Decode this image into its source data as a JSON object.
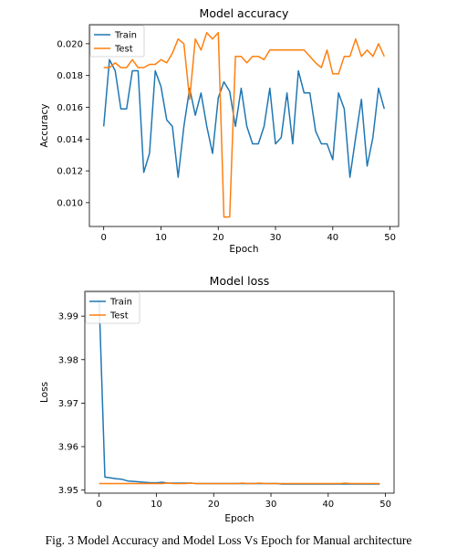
{
  "colors": {
    "train": "#1f77b4",
    "test": "#ff7f0e"
  },
  "caption": "Fig. 3  Model Accuracy and Model Loss Vs Epoch for Manual architecture",
  "chart_data": [
    {
      "type": "line",
      "title": "Model accuracy",
      "xlabel": "Epoch",
      "ylabel": "Accuracy",
      "xlim": [
        -2.5,
        51.5
      ],
      "ylim": [
        0.0085,
        0.0212
      ],
      "xticks": [
        0,
        10,
        20,
        30,
        40,
        50
      ],
      "xtick_labels": [
        "0",
        "10",
        "20",
        "30",
        "40",
        "50"
      ],
      "yticks": [
        0.01,
        0.012,
        0.014,
        0.016,
        0.018,
        0.02
      ],
      "ytick_labels": [
        "0.010",
        "0.012",
        "0.014",
        "0.016",
        "0.018",
        "0.020"
      ],
      "legend_position": "top-left",
      "x": [
        0,
        1,
        2,
        3,
        4,
        5,
        6,
        7,
        8,
        9,
        10,
        11,
        12,
        13,
        14,
        15,
        16,
        17,
        18,
        19,
        20,
        21,
        22,
        23,
        24,
        25,
        26,
        27,
        28,
        29,
        30,
        31,
        32,
        33,
        34,
        35,
        36,
        37,
        38,
        39,
        40,
        41,
        42,
        43,
        44,
        45,
        46,
        47,
        48,
        49
      ],
      "series": [
        {
          "name": "Train",
          "color": "#1f77b4",
          "values": [
            0.0148,
            0.019,
            0.0183,
            0.0159,
            0.0159,
            0.0183,
            0.0183,
            0.0119,
            0.0131,
            0.0183,
            0.0173,
            0.0152,
            0.0148,
            0.0116,
            0.0148,
            0.0172,
            0.0155,
            0.0169,
            0.0148,
            0.0131,
            0.0166,
            0.0176,
            0.017,
            0.0148,
            0.0172,
            0.0148,
            0.0137,
            0.0137,
            0.0148,
            0.0172,
            0.0137,
            0.0141,
            0.0169,
            0.0137,
            0.0183,
            0.0169,
            0.0169,
            0.0145,
            0.0137,
            0.0137,
            0.0127,
            0.0169,
            0.0159,
            0.0116,
            0.0141,
            0.0165,
            0.0123,
            0.0141,
            0.0172,
            0.0159
          ]
        },
        {
          "name": "Test",
          "color": "#ff7f0e",
          "values": [
            0.0185,
            0.0185,
            0.0188,
            0.0185,
            0.0185,
            0.019,
            0.0185,
            0.0185,
            0.0187,
            0.0187,
            0.019,
            0.0188,
            0.0194,
            0.0203,
            0.02,
            0.0165,
            0.0203,
            0.0196,
            0.0207,
            0.0203,
            0.0207,
            0.0091,
            0.0091,
            0.0192,
            0.0192,
            0.0188,
            0.0192,
            0.0192,
            0.019,
            0.0196,
            0.0196,
            0.0196,
            0.0196,
            0.0196,
            0.0196,
            0.0196,
            0.0192,
            0.0188,
            0.0185,
            0.0196,
            0.0181,
            0.0181,
            0.0192,
            0.0192,
            0.0203,
            0.0192,
            0.0196,
            0.0192,
            0.02,
            0.0192
          ]
        }
      ]
    },
    {
      "type": "line",
      "title": "Model loss",
      "xlabel": "Epoch",
      "ylabel": "Loss",
      "xlim": [
        -2.5,
        51.5
      ],
      "ylim": [
        3.9493,
        3.9957
      ],
      "xticks": [
        0,
        10,
        20,
        30,
        40,
        50
      ],
      "xtick_labels": [
        "0",
        "10",
        "20",
        "30",
        "40",
        "50"
      ],
      "yticks": [
        3.95,
        3.96,
        3.97,
        3.98,
        3.99
      ],
      "ytick_labels": [
        "3.95",
        "3.96",
        "3.97",
        "3.98",
        "3.99"
      ],
      "legend_position": "top-left",
      "x": [
        0,
        1,
        2,
        3,
        4,
        5,
        6,
        7,
        8,
        9,
        10,
        11,
        12,
        13,
        14,
        15,
        16,
        17,
        18,
        19,
        20,
        21,
        22,
        23,
        24,
        25,
        26,
        27,
        28,
        29,
        30,
        31,
        32,
        33,
        34,
        35,
        36,
        37,
        38,
        39,
        40,
        41,
        42,
        43,
        44,
        45,
        46,
        47,
        48,
        49
      ],
      "series": [
        {
          "name": "Train",
          "color": "#1f77b4",
          "values": [
            3.9936,
            3.953,
            3.9528,
            3.9526,
            3.9525,
            3.9521,
            3.952,
            3.9519,
            3.9518,
            3.9517,
            3.9517,
            3.9518,
            3.9516,
            3.9516,
            3.9516,
            3.9516,
            3.9516,
            3.9515,
            3.9515,
            3.9515,
            3.9515,
            3.9515,
            3.9515,
            3.9515,
            3.9515,
            3.9515,
            3.9515,
            3.9515,
            3.9515,
            3.9515,
            3.9515,
            3.9515,
            3.9514,
            3.9514,
            3.9514,
            3.9514,
            3.9514,
            3.9514,
            3.9514,
            3.9514,
            3.9514,
            3.9514,
            3.9514,
            3.9514,
            3.9514,
            3.9514,
            3.9514,
            3.9514,
            3.9514,
            3.9514
          ]
        },
        {
          "name": "Test",
          "color": "#ff7f0e",
          "values": [
            3.9515,
            3.9515,
            3.9515,
            3.9515,
            3.9515,
            3.9515,
            3.9515,
            3.9515,
            3.9515,
            3.9515,
            3.9515,
            3.9515,
            3.9516,
            3.9515,
            3.9515,
            3.9515,
            3.9516,
            3.9515,
            3.9515,
            3.9515,
            3.9515,
            3.9515,
            3.9515,
            3.9515,
            3.9515,
            3.9516,
            3.9515,
            3.9515,
            3.9516,
            3.9515,
            3.9515,
            3.9515,
            3.9515,
            3.9515,
            3.9515,
            3.9515,
            3.9515,
            3.9515,
            3.9515,
            3.9515,
            3.9515,
            3.9515,
            3.9515,
            3.9516,
            3.9515,
            3.9515,
            3.9515,
            3.9515,
            3.9515,
            3.9515
          ]
        }
      ]
    }
  ]
}
